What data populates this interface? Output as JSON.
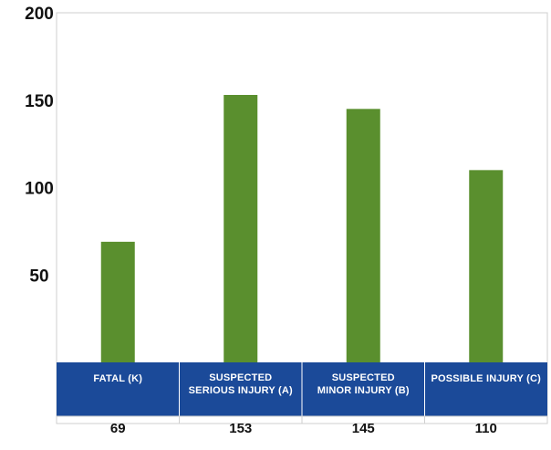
{
  "colors": {
    "bar": "#5a8f2e",
    "header_band": "#1b4a99",
    "frame": "#cfcfcf",
    "divider": "#ffffff"
  },
  "chart_data": {
    "type": "bar",
    "categories": [
      [
        "FATAL (K)"
      ],
      [
        "SUSPECTED",
        "SERIOUS INJURY (A)"
      ],
      [
        "SUSPECTED",
        "MINOR INJURY (B)"
      ],
      [
        "POSSIBLE INJURY (C)"
      ]
    ],
    "values": [
      69,
      153,
      145,
      110
    ],
    "value_labels": [
      "69",
      "153",
      "145",
      "110"
    ],
    "yticks": [
      50,
      100,
      150,
      200
    ],
    "ytick_labels": [
      "50",
      "100",
      "150",
      "200"
    ],
    "ylim": [
      0,
      200
    ],
    "grid": false,
    "legend": "none",
    "data_table": true
  }
}
